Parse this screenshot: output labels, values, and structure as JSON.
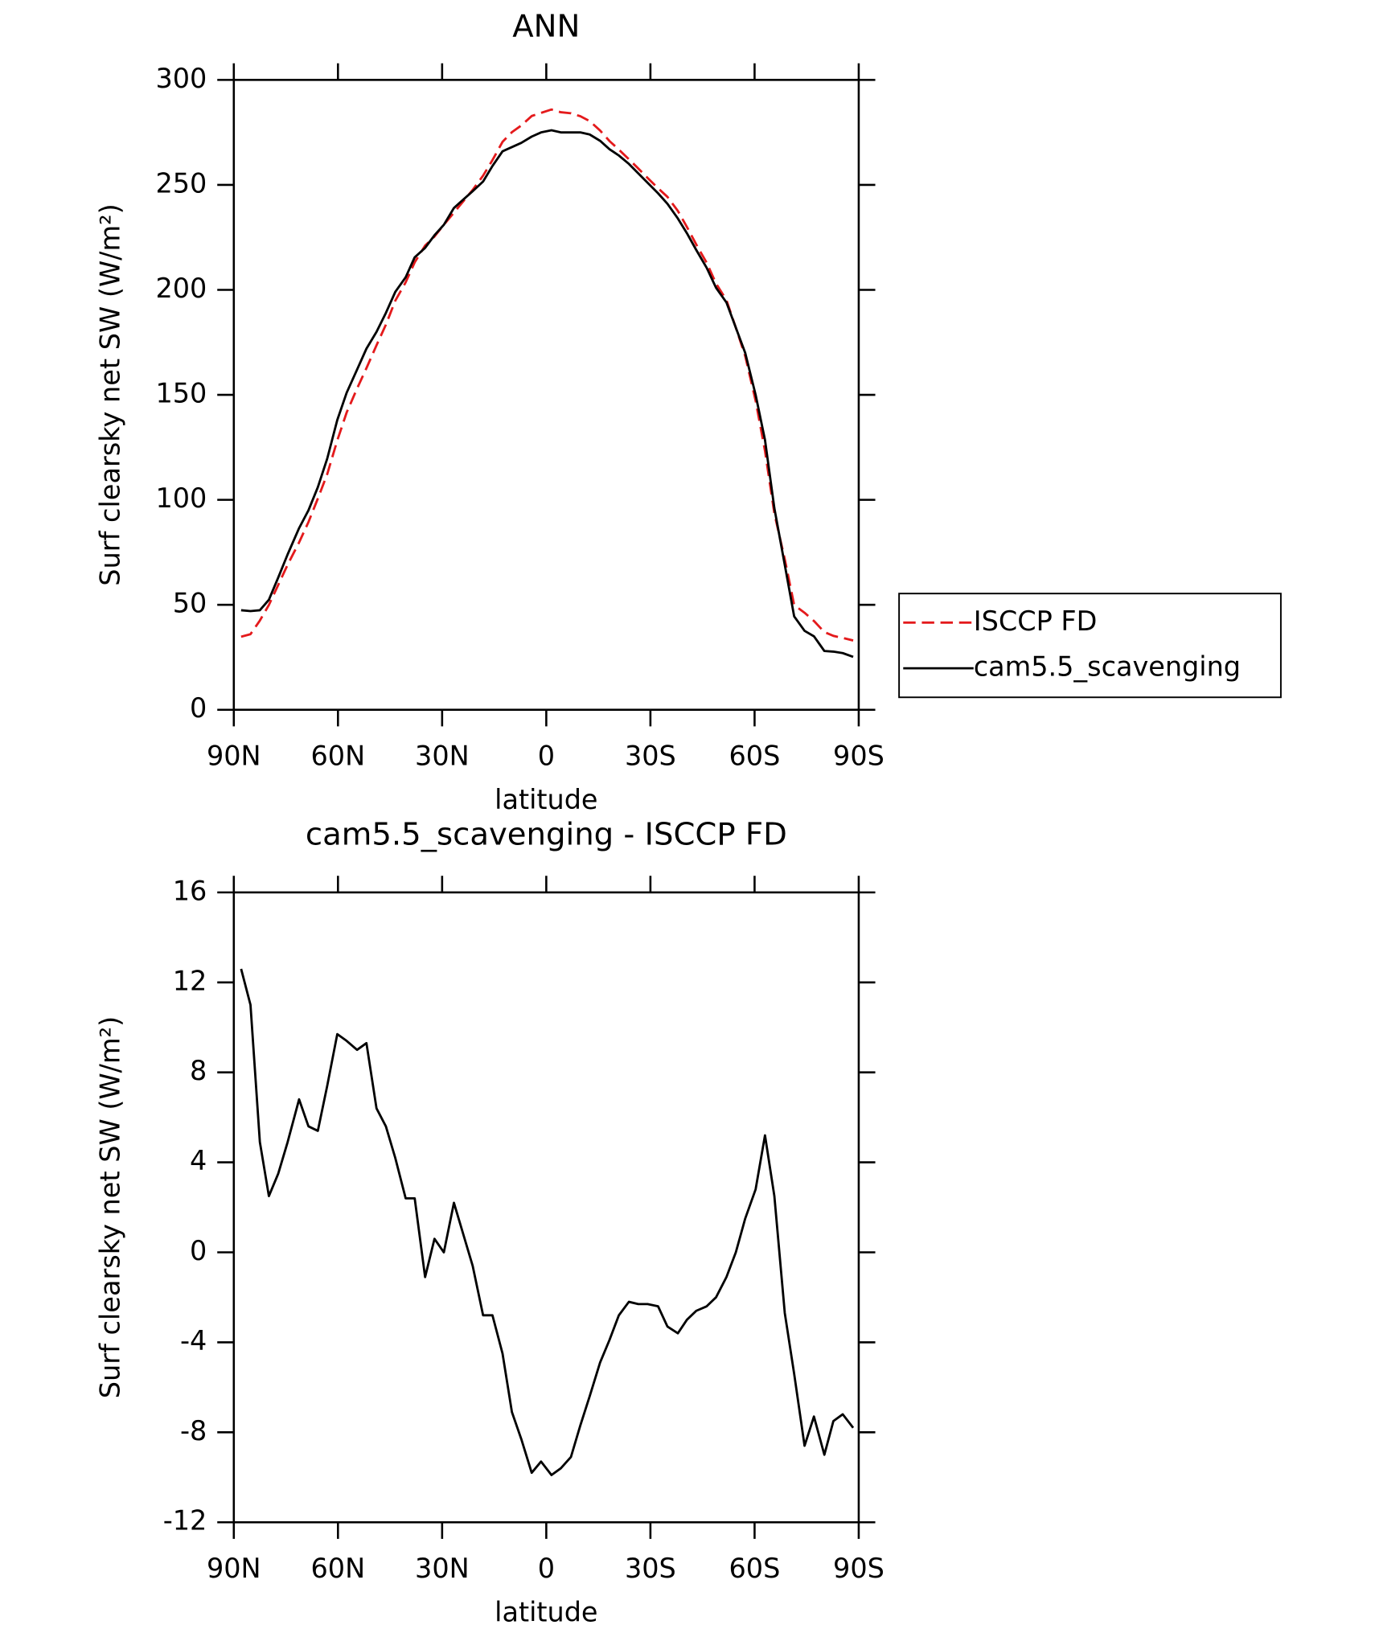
{
  "chart_data": [
    {
      "type": "line",
      "title": "ANN",
      "xlabel": "latitude",
      "ylabel": "Surf clearsky net SW (W/m²)",
      "x": [
        87.9,
        85.2,
        82.5,
        79.9,
        77.2,
        74.5,
        71.2,
        68.5,
        65.8,
        63.1,
        60.2,
        57.5,
        54.5,
        51.8,
        48.9,
        46.2,
        43.5,
        40.5,
        37.9,
        34.9,
        32.2,
        29.5,
        26.6,
        23.9,
        21.2,
        18.2,
        15.5,
        12.6,
        9.9,
        7.2,
        4.2,
        1.5,
        -1.5,
        -4.2,
        -7.1,
        -9.8,
        -12.5,
        -15.5,
        -18.2,
        -20.9,
        -23.8,
        -26.5,
        -29.2,
        -32.2,
        -34.9,
        -37.9,
        -40.5,
        -43.2,
        -46.2,
        -48.9,
        -51.9,
        -54.6,
        -57.3,
        -60.3,
        -63.0,
        -65.7,
        -68.7,
        -71.4,
        -74.4,
        -77.1,
        -80.1,
        -82.7,
        -85.4,
        -88.4
      ],
      "series": [
        {
          "name": "ISCCP FD",
          "color": "#e41a1c",
          "dashed": true,
          "values": [
            34.8,
            36,
            42.5,
            49.9,
            59.5,
            69.1,
            79.7,
            89.4,
            100.6,
            112.2,
            128.3,
            141.6,
            153,
            162.7,
            173.6,
            183.4,
            194.8,
            203.6,
            213.1,
            221.1,
            225.4,
            231,
            236.8,
            242.2,
            247.6,
            254.4,
            261.8,
            270.5,
            275.1,
            278.3,
            282.8,
            284.3,
            285.9,
            284.6,
            284.1,
            282.7,
            280.4,
            275.9,
            270.9,
            266.8,
            262.2,
            257.8,
            253.3,
            248.4,
            244.3,
            237.6,
            230,
            221.6,
            212.9,
            203,
            195.1,
            182,
            168.5,
            147.2,
            123.3,
            93.5,
            71.7,
            49.9,
            46.2,
            42.3,
            37,
            35.2,
            34.2,
            33
          ]
        },
        {
          "name": "cam5.5_scavenging",
          "color": "#000000",
          "dashed": false,
          "values": [
            47.4,
            47,
            47.4,
            52.4,
            63,
            74,
            86.5,
            95,
            106,
            119.6,
            138,
            151,
            162,
            172,
            180,
            189,
            199,
            206,
            215.5,
            220,
            226,
            231,
            239,
            243,
            247,
            251.6,
            259,
            266,
            268,
            270,
            273,
            275,
            276,
            275,
            275,
            275,
            274,
            271,
            267,
            264,
            260,
            255.5,
            251,
            246,
            241,
            234,
            227,
            219,
            210.5,
            201,
            194,
            182,
            170,
            150,
            128.5,
            96,
            69,
            44.5,
            37.6,
            35,
            28,
            27.7,
            27,
            25.2
          ]
        }
      ],
      "xlim": [
        90,
        -90
      ],
      "xticks": [
        {
          "value": 90,
          "label": "90N"
        },
        {
          "value": 60,
          "label": "60N"
        },
        {
          "value": 30,
          "label": "30N"
        },
        0,
        {
          "value": -30,
          "label": "30S"
        },
        {
          "value": -60,
          "label": "60S"
        },
        {
          "value": -90,
          "label": "90S"
        }
      ],
      "ylim": [
        0,
        300
      ],
      "yticks": [
        0,
        50,
        100,
        150,
        200,
        250,
        300
      ],
      "legend": "right"
    },
    {
      "type": "line",
      "title": "cam5.5_scavenging - ISCCP FD",
      "xlabel": "latitude",
      "ylabel": "Surf clearsky net SW (W/m²)",
      "x": [
        87.9,
        85.2,
        82.5,
        79.9,
        77.2,
        74.5,
        71.2,
        68.5,
        65.8,
        63.1,
        60.2,
        57.5,
        54.5,
        51.8,
        48.9,
        46.2,
        43.5,
        40.5,
        37.9,
        34.9,
        32.2,
        29.5,
        26.6,
        23.9,
        21.2,
        18.2,
        15.5,
        12.6,
        9.9,
        7.2,
        4.2,
        1.5,
        -1.5,
        -4.2,
        -7.1,
        -9.8,
        -12.5,
        -15.5,
        -18.2,
        -20.9,
        -23.8,
        -26.5,
        -29.2,
        -32.2,
        -34.9,
        -37.9,
        -40.5,
        -43.2,
        -46.2,
        -48.9,
        -51.9,
        -54.6,
        -57.3,
        -60.3,
        -63.0,
        -65.7,
        -68.7,
        -71.4,
        -74.4,
        -77.1,
        -80.1,
        -82.7,
        -85.4,
        -88.4
      ],
      "values": [
        12.6,
        11.0,
        4.9,
        2.5,
        3.5,
        4.9,
        6.8,
        5.6,
        5.4,
        7.4,
        9.7,
        9.4,
        9.0,
        9.3,
        6.4,
        5.6,
        4.2,
        2.4,
        2.4,
        -1.1,
        0.6,
        0.0,
        2.2,
        0.8,
        -0.6,
        -2.8,
        -2.8,
        -4.5,
        -7.1,
        -8.3,
        -9.8,
        -9.3,
        -9.9,
        -9.6,
        -9.1,
        -7.7,
        -6.4,
        -4.9,
        -3.9,
        -2.8,
        -2.2,
        -2.3,
        -2.3,
        -2.4,
        -3.3,
        -3.6,
        -3.0,
        -2.6,
        -2.4,
        -2.0,
        -1.1,
        0.0,
        1.5,
        2.8,
        5.2,
        2.5,
        -2.7,
        -5.4,
        -8.6,
        -7.3,
        -9.0,
        -7.5,
        -7.2,
        -7.8
      ],
      "color": "#000000",
      "xlim": [
        90,
        -90
      ],
      "xticks": [
        {
          "value": 90,
          "label": "90N"
        },
        {
          "value": 60,
          "label": "60N"
        },
        {
          "value": 30,
          "label": "30N"
        },
        0,
        {
          "value": -30,
          "label": "30S"
        },
        {
          "value": -60,
          "label": "60S"
        },
        {
          "value": -90,
          "label": "90S"
        }
      ],
      "ylim": [
        -12,
        16
      ],
      "yticks": [
        -12,
        -8,
        -4,
        0,
        4,
        8,
        12,
        16
      ]
    }
  ]
}
